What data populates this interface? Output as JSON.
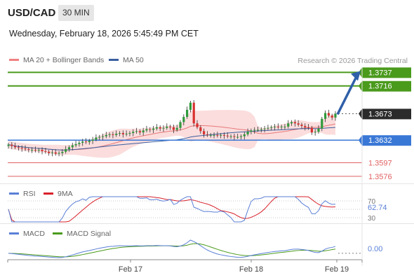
{
  "header": {
    "symbol": "USD/CAD",
    "timeframe": "30 MIN",
    "datetime": "Wednesday, February 18, 2026 5:45:49 PM CET",
    "credit": "Research © 2026 Trading Central"
  },
  "colors": {
    "resistance": "#4a9a1c",
    "pivot": "#3a78d6",
    "support": "#e06060",
    "last": "#2b2b2b",
    "arrow": "#2f5fa8",
    "bull": "#2f9a3b",
    "bear": "#d83030",
    "ma20": "#e87878",
    "ma50": "#3b5fa0",
    "bollinger": "#f9d2d2",
    "rsi": "#5a7fd6",
    "rsi_ma": "#d8202a",
    "macd": "#5a7fd6",
    "macd_signal": "#4a9a1c"
  },
  "chart_data": [
    {
      "type": "candlestick",
      "legend": [
        "MA 20 + Bollinger Bands",
        "MA 50"
      ],
      "x_ticks": [
        "Feb 17",
        "Feb 18",
        "Feb 19"
      ],
      "ylim": [
        1.3565,
        1.3745
      ],
      "levels": [
        {
          "label": "1.3737",
          "value": 1.3737,
          "kind": "resistance"
        },
        {
          "label": "1.3716",
          "value": 1.3716,
          "kind": "resistance"
        },
        {
          "label": "1.3673",
          "value": 1.3673,
          "kind": "last"
        },
        {
          "label": "1.3632",
          "value": 1.3632,
          "kind": "pivot"
        },
        {
          "label": "1.3597",
          "value": 1.3597,
          "kind": "support"
        },
        {
          "label": "1.3576",
          "value": 1.3576,
          "kind": "support"
        }
      ],
      "target_arrow": {
        "from": 1.3673,
        "to": 1.3737
      },
      "close": [
        1.3625,
        1.3623,
        1.3621,
        1.362,
        1.3619,
        1.3618,
        1.3617,
        1.3617,
        1.3616,
        1.3617,
        1.3615,
        1.3614,
        1.3612,
        1.3613,
        1.3611,
        1.3612,
        1.3614,
        1.3618,
        1.3621,
        1.3624,
        1.3626,
        1.3628,
        1.363,
        1.3629,
        1.3631,
        1.3633,
        1.3636,
        1.3637,
        1.3638,
        1.364,
        1.3641,
        1.364,
        1.3642,
        1.3643,
        1.3641,
        1.3642,
        1.3643,
        1.3645,
        1.3646,
        1.3644,
        1.3647,
        1.3649,
        1.3648,
        1.365,
        1.3652,
        1.365,
        1.3651,
        1.3653,
        1.3652,
        1.3648,
        1.3651,
        1.366,
        1.3668,
        1.3679,
        1.369,
        1.3658,
        1.3652,
        1.3646,
        1.3641,
        1.364,
        1.364,
        1.364,
        1.3639,
        1.364,
        1.3639,
        1.3638,
        1.3638,
        1.3637,
        1.3637,
        1.3638,
        1.3641,
        1.3645,
        1.3647,
        1.3648,
        1.3648,
        1.3649,
        1.365,
        1.3651,
        1.3652,
        1.3653,
        1.3652,
        1.3653,
        1.3653,
        1.3658,
        1.366,
        1.3658,
        1.3656,
        1.3654,
        1.3652,
        1.3651,
        1.3644,
        1.3645,
        1.365,
        1.3665,
        1.3674,
        1.367,
        1.3667,
        1.3673
      ]
    },
    {
      "type": "line",
      "name": "RSI",
      "legend": [
        "RSI",
        "9MA"
      ],
      "value_label": "62.74",
      "y_ticks": [
        "70",
        "30"
      ]
    },
    {
      "type": "line",
      "name": "MACD",
      "legend": [
        "MACD",
        "MACD Signal"
      ],
      "value_label": "0.00"
    }
  ]
}
